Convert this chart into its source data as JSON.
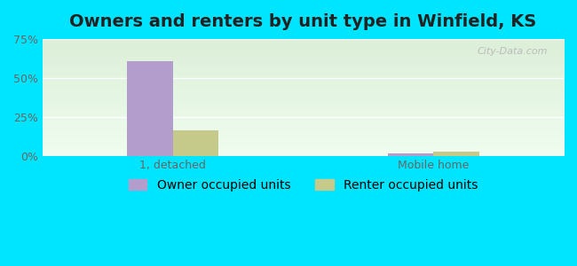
{
  "title": "Owners and renters by unit type in Winfield, KS",
  "categories": [
    "1, detached",
    "Mobile home"
  ],
  "owner_values": [
    60.5,
    1.5
  ],
  "renter_values": [
    16.0,
    2.5
  ],
  "owner_color": "#b39dcc",
  "renter_color": "#c5c98a",
  "background_outer": "#00e5ff",
  "background_inner_top": "#dcefd8",
  "background_inner_bottom": "#f0fdf0",
  "ylim": [
    0,
    75
  ],
  "yticks": [
    0,
    25,
    50,
    75
  ],
  "ytick_labels": [
    "0%",
    "25%",
    "50%",
    "75%"
  ],
  "bar_width": 0.35,
  "group_positions": [
    1.0,
    3.0
  ],
  "xlim": [
    0.0,
    4.0
  ],
  "title_fontsize": 14,
  "tick_fontsize": 9,
  "legend_fontsize": 10,
  "legend_labels": [
    "Owner occupied units",
    "Renter occupied units"
  ],
  "watermark": "City-Data.com",
  "watermark_color": "#bbbbbb"
}
